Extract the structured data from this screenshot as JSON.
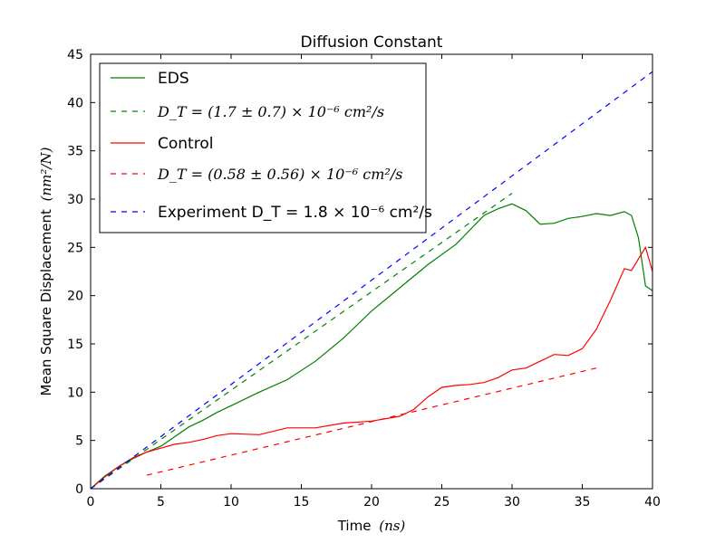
{
  "chart_data": {
    "type": "line",
    "title": "Diffusion Constant",
    "xlabel": "Time",
    "xlabel_unit": "(ns)",
    "ylabel": "Mean Square Displacement",
    "ylabel_unit": "(nm²/N)",
    "xlim": [
      0,
      40
    ],
    "ylim": [
      0,
      45
    ],
    "x_ticks": [
      0,
      5,
      10,
      15,
      20,
      25,
      30,
      35,
      40
    ],
    "y_ticks": [
      0,
      5,
      10,
      15,
      20,
      25,
      30,
      35,
      40,
      45
    ],
    "grid": false,
    "legend_placement": "top-left",
    "series": [
      {
        "name": "EDS",
        "color": "#008000",
        "style": "solid",
        "x": [
          0,
          1,
          2,
          3,
          4,
          5,
          6,
          7,
          8,
          9,
          10,
          12,
          14,
          16,
          18,
          20,
          22,
          24,
          26,
          28,
          29,
          30,
          31,
          32,
          33,
          34,
          35,
          36,
          37,
          38,
          38.5,
          39,
          39.5,
          40
        ],
        "y": [
          0,
          1.3,
          2.3,
          3.1,
          3.8,
          4.4,
          5.4,
          6.4,
          7.1,
          7.9,
          8.6,
          10.0,
          11.3,
          13.2,
          15.6,
          18.4,
          20.8,
          23.2,
          25.3,
          28.3,
          29.0,
          29.5,
          28.8,
          27.4,
          27.5,
          28.0,
          28.2,
          28.5,
          28.3,
          28.7,
          28.3,
          26.0,
          21.0,
          20.5
        ]
      },
      {
        "name": "D_T = (1.7 ± 0.7) × 10⁻⁶ cm²/s",
        "color": "#008000",
        "style": "dashed",
        "x": [
          0,
          30
        ],
        "y": [
          0,
          30.6
        ]
      },
      {
        "name": "Control",
        "color": "#ff0000",
        "style": "solid",
        "x": [
          0,
          1,
          2,
          3,
          4,
          5,
          6,
          7,
          8,
          9,
          10,
          12,
          14,
          16,
          18,
          20,
          22,
          23,
          24,
          25,
          26,
          27,
          28,
          29,
          30,
          31,
          32,
          33,
          34,
          35,
          36,
          37,
          38,
          38.5,
          39,
          39.5,
          40
        ],
        "y": [
          0,
          1.2,
          2.3,
          3.2,
          3.8,
          4.2,
          4.6,
          4.8,
          5.1,
          5.5,
          5.7,
          5.6,
          6.3,
          6.3,
          6.8,
          7.0,
          7.5,
          8.2,
          9.5,
          10.5,
          10.7,
          10.8,
          11.0,
          11.5,
          12.3,
          12.5,
          13.2,
          13.9,
          13.8,
          14.5,
          16.5,
          19.5,
          22.8,
          22.6,
          23.8,
          25.0,
          22.5
        ]
      },
      {
        "name": "D_T = (0.58 ± 0.56) × 10⁻⁶ cm²/s",
        "color": "#ff0000",
        "style": "dashed",
        "x": [
          4,
          36
        ],
        "y": [
          1.4,
          12.5
        ]
      },
      {
        "name": "Experiment D_T = 1.8 × 10⁻⁶ cm²/s",
        "color": "#0000ff",
        "style": "dashed",
        "x": [
          0,
          40
        ],
        "y": [
          0,
          43.2
        ]
      }
    ],
    "legend": [
      {
        "text": "EDS",
        "color": "#008000",
        "style": "solid",
        "math": false
      },
      {
        "text": "D_T = (1.7 ± 0.7) × 10⁻⁶ cm²/s",
        "color": "#008000",
        "style": "dashed",
        "math": true
      },
      {
        "text": "Control",
        "color": "#ff0000",
        "style": "solid",
        "math": false
      },
      {
        "text": "D_T = (0.58 ± 0.56) × 10⁻⁶ cm²/s",
        "color": "#ff0000",
        "style": "dashed",
        "math": true
      },
      {
        "text": "Experiment D_T = 1.8 × 10⁻⁶ cm²/s",
        "color": "#0000ff",
        "style": "dashed",
        "math": false
      }
    ]
  }
}
